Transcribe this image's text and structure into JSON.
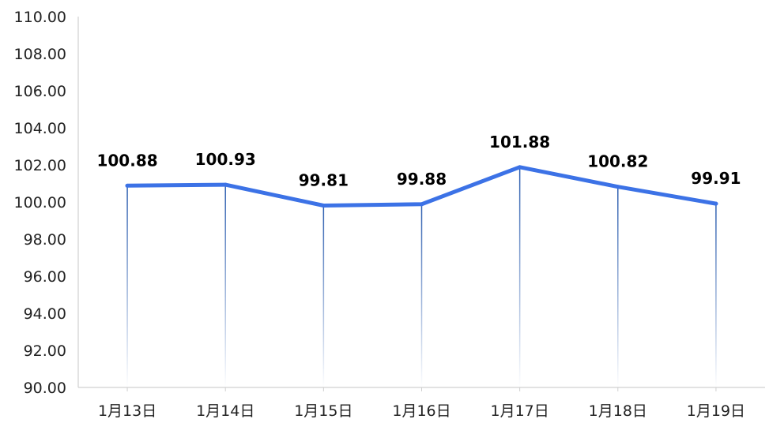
{
  "chart_data": {
    "type": "line",
    "categories": [
      "1月13日",
      "1月14日",
      "1月15日",
      "1月16日",
      "1月17日",
      "1月18日",
      "1月19日"
    ],
    "series": [
      {
        "values": [
          100.88,
          100.93,
          99.81,
          99.88,
          101.88,
          100.82,
          99.91
        ]
      }
    ],
    "data_labels": [
      "100.88",
      "100.93",
      "99.81",
      "99.88",
      "101.88",
      "100.82",
      "99.91"
    ],
    "yticks": [
      "90.00",
      "92.00",
      "94.00",
      "96.00",
      "98.00",
      "100.00",
      "102.00",
      "104.00",
      "106.00",
      "108.00",
      "110.00"
    ],
    "ylim": [
      90,
      110
    ],
    "grid": false,
    "drop_lines": true,
    "colors": {
      "line": "#3c72e6",
      "drop_line": "#2e5fb0",
      "axis": "#d0d0d0"
    }
  }
}
